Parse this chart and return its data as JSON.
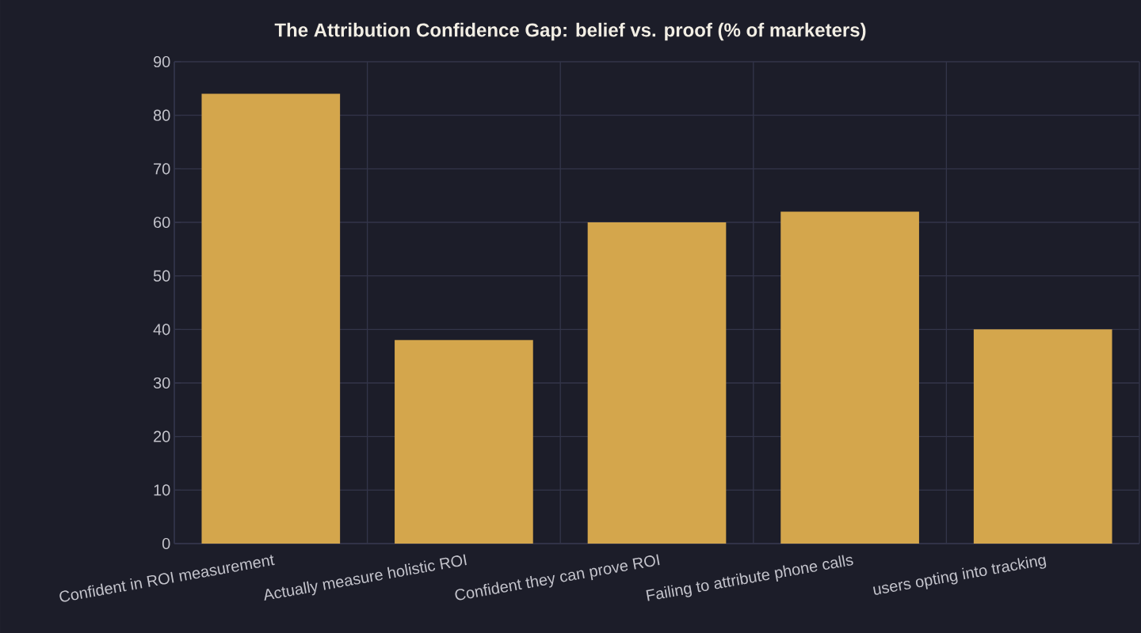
{
  "chart_data": {
    "type": "bar",
    "title": "The Attribution Confidence Gap: belief vs. proof (% of marketers)",
    "categories": [
      "Confident in ROI measurement",
      "Actually measure holistic ROI",
      "Confident they can prove ROI",
      "Failing to attribute phone calls",
      "users opting into tracking"
    ],
    "values": [
      84,
      38,
      60,
      62,
      40
    ],
    "color": "#d4a64c",
    "ylim": [
      0,
      90
    ],
    "yticks": [
      0,
      10,
      20,
      30,
      40,
      50,
      60,
      70,
      80,
      90
    ],
    "grid": true
  }
}
